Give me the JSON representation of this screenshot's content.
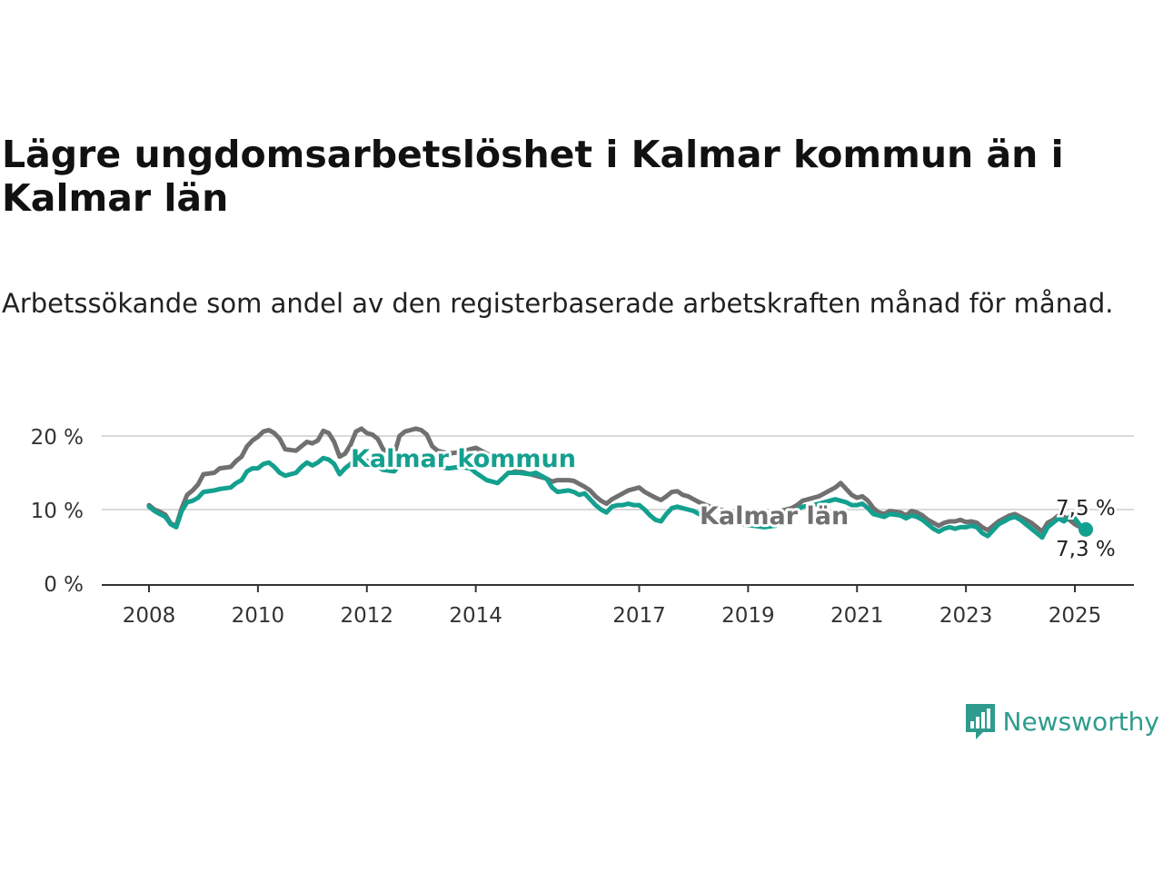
{
  "title": "Lägre ungdomsarbetslöshet i Kalmar kommun än i Kalmar län",
  "subtitle": "Arbetssökande som andel av den registerbaserade arbetskraften månad för månad.",
  "brand": {
    "name": "Newsworthy",
    "color": "#2e9b8e",
    "icon": "newsworthy-logo-icon"
  },
  "chart_data": {
    "type": "line",
    "xlabel": "",
    "ylabel": "",
    "ylim": [
      0,
      20
    ],
    "yticks": [
      {
        "value": 0,
        "label": "0 %"
      },
      {
        "value": 10,
        "label": "10 %"
      },
      {
        "value": 20,
        "label": "20 %"
      }
    ],
    "xlim": [
      2008,
      2025.6
    ],
    "xticks": [
      "2008",
      "2010",
      "2012",
      "2014",
      "2017",
      "2019",
      "2021",
      "2023",
      "2025"
    ],
    "grid": true,
    "series": [
      {
        "name": "Kalmar län",
        "color": "#707070",
        "end_label": "7,5 %",
        "points": [
          [
            2008.0,
            10.6
          ],
          [
            2008.1,
            10.0
          ],
          [
            2008.2,
            9.7
          ],
          [
            2008.3,
            9.3
          ],
          [
            2008.4,
            8.1
          ],
          [
            2008.5,
            7.8
          ],
          [
            2008.6,
            10.2
          ],
          [
            2008.7,
            12.0
          ],
          [
            2008.8,
            12.6
          ],
          [
            2008.9,
            13.4
          ],
          [
            2009.0,
            14.8
          ],
          [
            2009.2,
            15.0
          ],
          [
            2009.3,
            15.6
          ],
          [
            2009.5,
            15.8
          ],
          [
            2009.6,
            16.6
          ],
          [
            2009.7,
            17.2
          ],
          [
            2009.8,
            18.6
          ],
          [
            2009.9,
            19.4
          ],
          [
            2010.0,
            19.9
          ],
          [
            2010.1,
            20.6
          ],
          [
            2010.2,
            20.8
          ],
          [
            2010.3,
            20.4
          ],
          [
            2010.4,
            19.6
          ],
          [
            2010.5,
            18.2
          ],
          [
            2010.7,
            18.0
          ],
          [
            2010.8,
            18.6
          ],
          [
            2010.9,
            19.2
          ],
          [
            2011.0,
            19.0
          ],
          [
            2011.1,
            19.4
          ],
          [
            2011.2,
            20.7
          ],
          [
            2011.3,
            20.4
          ],
          [
            2011.4,
            19.2
          ],
          [
            2011.5,
            17.2
          ],
          [
            2011.6,
            17.6
          ],
          [
            2011.7,
            18.8
          ],
          [
            2011.8,
            20.6
          ],
          [
            2011.9,
            21.0
          ],
          [
            2012.0,
            20.4
          ],
          [
            2012.1,
            20.2
          ],
          [
            2012.2,
            19.6
          ],
          [
            2012.3,
            18.2
          ],
          [
            2012.5,
            17.4
          ],
          [
            2012.6,
            20.0
          ],
          [
            2012.7,
            20.6
          ],
          [
            2012.8,
            20.8
          ],
          [
            2012.9,
            21.0
          ],
          [
            2013.0,
            20.8
          ],
          [
            2013.1,
            20.2
          ],
          [
            2013.2,
            18.6
          ],
          [
            2013.3,
            18.0
          ],
          [
            2013.5,
            17.6
          ],
          [
            2013.7,
            17.8
          ],
          [
            2013.9,
            18.2
          ],
          [
            2014.0,
            18.4
          ],
          [
            2014.2,
            17.6
          ],
          [
            2014.4,
            16.8
          ],
          [
            2014.6,
            16.0
          ],
          [
            2014.8,
            15.2
          ],
          [
            2015.0,
            14.8
          ],
          [
            2015.1,
            14.6
          ],
          [
            2015.3,
            14.2
          ],
          [
            2015.4,
            13.8
          ],
          [
            2015.5,
            14.0
          ],
          [
            2015.7,
            14.0
          ],
          [
            2015.8,
            13.9
          ],
          [
            2015.9,
            13.5
          ],
          [
            2016.0,
            13.1
          ],
          [
            2016.1,
            12.6
          ],
          [
            2016.2,
            11.8
          ],
          [
            2016.3,
            11.2
          ],
          [
            2016.4,
            10.8
          ],
          [
            2016.5,
            11.4
          ],
          [
            2016.6,
            11.8
          ],
          [
            2016.7,
            12.2
          ],
          [
            2016.8,
            12.6
          ],
          [
            2016.9,
            12.8
          ],
          [
            2017.0,
            13.0
          ],
          [
            2017.1,
            12.4
          ],
          [
            2017.2,
            12.0
          ],
          [
            2017.3,
            11.6
          ],
          [
            2017.4,
            11.3
          ],
          [
            2017.5,
            11.8
          ],
          [
            2017.6,
            12.4
          ],
          [
            2017.7,
            12.5
          ],
          [
            2017.8,
            12.0
          ],
          [
            2017.9,
            11.8
          ],
          [
            2018.0,
            11.4
          ],
          [
            2018.1,
            11.0
          ],
          [
            2018.3,
            10.4
          ],
          [
            2018.5,
            10.0
          ],
          [
            2018.7,
            9.6
          ],
          [
            2018.9,
            9.2
          ],
          [
            2019.1,
            9.0
          ],
          [
            2019.3,
            8.8
          ],
          [
            2019.5,
            8.6
          ],
          [
            2019.6,
            9.8
          ],
          [
            2019.8,
            10.2
          ],
          [
            2019.9,
            10.6
          ],
          [
            2020.0,
            11.2
          ],
          [
            2020.2,
            11.6
          ],
          [
            2020.3,
            11.8
          ],
          [
            2020.4,
            12.2
          ],
          [
            2020.5,
            12.6
          ],
          [
            2020.6,
            13.0
          ],
          [
            2020.7,
            13.6
          ],
          [
            2020.8,
            12.8
          ],
          [
            2020.9,
            12.0
          ],
          [
            2021.0,
            11.6
          ],
          [
            2021.1,
            11.8
          ],
          [
            2021.2,
            11.2
          ],
          [
            2021.3,
            10.2
          ],
          [
            2021.4,
            9.6
          ],
          [
            2021.5,
            9.4
          ],
          [
            2021.6,
            9.8
          ],
          [
            2021.8,
            9.6
          ],
          [
            2021.9,
            9.2
          ],
          [
            2022.0,
            9.8
          ],
          [
            2022.1,
            9.6
          ],
          [
            2022.2,
            9.2
          ],
          [
            2022.3,
            8.6
          ],
          [
            2022.4,
            8.2
          ],
          [
            2022.5,
            7.8
          ],
          [
            2022.6,
            8.2
          ],
          [
            2022.7,
            8.4
          ],
          [
            2022.8,
            8.4
          ],
          [
            2022.9,
            8.6
          ],
          [
            2023.0,
            8.3
          ],
          [
            2023.1,
            8.4
          ],
          [
            2023.2,
            8.2
          ],
          [
            2023.3,
            7.6
          ],
          [
            2023.4,
            7.2
          ],
          [
            2023.5,
            7.8
          ],
          [
            2023.6,
            8.4
          ],
          [
            2023.7,
            8.8
          ],
          [
            2023.8,
            9.2
          ],
          [
            2023.9,
            9.4
          ],
          [
            2024.0,
            9.0
          ],
          [
            2024.1,
            8.6
          ],
          [
            2024.2,
            8.2
          ],
          [
            2024.3,
            7.6
          ],
          [
            2024.4,
            7.0
          ],
          [
            2024.5,
            8.2
          ],
          [
            2024.6,
            8.6
          ],
          [
            2024.7,
            9.2
          ],
          [
            2024.8,
            9.0
          ],
          [
            2024.9,
            8.6
          ],
          [
            2025.0,
            8.0
          ],
          [
            2025.1,
            7.6
          ],
          [
            2025.2,
            7.5
          ]
        ]
      },
      {
        "name": "Kalmar kommun",
        "color": "#13a08f",
        "end_label": "7,3 %",
        "points": [
          [
            2008.0,
            10.4
          ],
          [
            2008.1,
            9.8
          ],
          [
            2008.2,
            9.4
          ],
          [
            2008.3,
            9.0
          ],
          [
            2008.4,
            8.0
          ],
          [
            2008.5,
            7.6
          ],
          [
            2008.6,
            9.8
          ],
          [
            2008.7,
            11.0
          ],
          [
            2008.8,
            11.2
          ],
          [
            2008.9,
            11.6
          ],
          [
            2009.0,
            12.4
          ],
          [
            2009.2,
            12.6
          ],
          [
            2009.3,
            12.8
          ],
          [
            2009.5,
            13.0
          ],
          [
            2009.6,
            13.6
          ],
          [
            2009.7,
            14.0
          ],
          [
            2009.8,
            15.2
          ],
          [
            2009.9,
            15.6
          ],
          [
            2010.0,
            15.6
          ],
          [
            2010.1,
            16.2
          ],
          [
            2010.2,
            16.4
          ],
          [
            2010.3,
            15.8
          ],
          [
            2010.4,
            15.0
          ],
          [
            2010.5,
            14.6
          ],
          [
            2010.7,
            15.0
          ],
          [
            2010.8,
            15.8
          ],
          [
            2010.9,
            16.4
          ],
          [
            2011.0,
            16.0
          ],
          [
            2011.1,
            16.4
          ],
          [
            2011.2,
            17.0
          ],
          [
            2011.3,
            16.8
          ],
          [
            2011.4,
            16.2
          ],
          [
            2011.5,
            14.8
          ],
          [
            2011.6,
            15.6
          ],
          [
            2011.7,
            16.2
          ],
          [
            2011.8,
            17.0
          ],
          [
            2011.9,
            16.8
          ],
          [
            2012.0,
            16.6
          ],
          [
            2012.1,
            16.2
          ],
          [
            2012.2,
            15.8
          ],
          [
            2012.3,
            15.4
          ],
          [
            2012.5,
            15.2
          ],
          [
            2012.6,
            16.0
          ],
          [
            2012.7,
            16.6
          ],
          [
            2012.8,
            16.8
          ],
          [
            2012.9,
            17.0
          ],
          [
            2013.0,
            17.2
          ],
          [
            2013.1,
            16.8
          ],
          [
            2013.2,
            16.2
          ],
          [
            2013.3,
            15.8
          ],
          [
            2013.5,
            15.6
          ],
          [
            2013.7,
            15.8
          ],
          [
            2013.9,
            15.6
          ],
          [
            2014.0,
            15.0
          ],
          [
            2014.2,
            14.0
          ],
          [
            2014.4,
            13.6
          ],
          [
            2014.6,
            15.0
          ],
          [
            2014.8,
            15.0
          ],
          [
            2015.0,
            14.8
          ],
          [
            2015.1,
            15.0
          ],
          [
            2015.3,
            14.2
          ],
          [
            2015.4,
            13.0
          ],
          [
            2015.5,
            12.4
          ],
          [
            2015.7,
            12.6
          ],
          [
            2015.8,
            12.4
          ],
          [
            2015.9,
            12.0
          ],
          [
            2016.0,
            12.2
          ],
          [
            2016.1,
            11.4
          ],
          [
            2016.2,
            10.6
          ],
          [
            2016.3,
            10.0
          ],
          [
            2016.4,
            9.6
          ],
          [
            2016.5,
            10.4
          ],
          [
            2016.6,
            10.6
          ],
          [
            2016.7,
            10.6
          ],
          [
            2016.8,
            10.8
          ],
          [
            2016.9,
            10.6
          ],
          [
            2017.0,
            10.6
          ],
          [
            2017.1,
            10.0
          ],
          [
            2017.2,
            9.2
          ],
          [
            2017.3,
            8.6
          ],
          [
            2017.4,
            8.4
          ],
          [
            2017.5,
            9.4
          ],
          [
            2017.6,
            10.2
          ],
          [
            2017.7,
            10.4
          ],
          [
            2017.8,
            10.2
          ],
          [
            2017.9,
            10.0
          ],
          [
            2018.0,
            9.8
          ],
          [
            2018.1,
            9.4
          ],
          [
            2018.3,
            8.8
          ],
          [
            2018.5,
            8.4
          ],
          [
            2018.7,
            8.2
          ],
          [
            2018.9,
            8.0
          ],
          [
            2019.1,
            7.8
          ],
          [
            2019.3,
            7.6
          ],
          [
            2019.5,
            7.8
          ],
          [
            2019.6,
            8.6
          ],
          [
            2019.8,
            9.4
          ],
          [
            2019.9,
            10.0
          ],
          [
            2020.0,
            10.4
          ],
          [
            2020.2,
            10.6
          ],
          [
            2020.3,
            10.8
          ],
          [
            2020.4,
            11.0
          ],
          [
            2020.5,
            11.2
          ],
          [
            2020.6,
            11.4
          ],
          [
            2020.7,
            11.2
          ],
          [
            2020.8,
            11.0
          ],
          [
            2020.9,
            10.6
          ],
          [
            2021.0,
            10.6
          ],
          [
            2021.1,
            10.8
          ],
          [
            2021.2,
            10.2
          ],
          [
            2021.3,
            9.4
          ],
          [
            2021.4,
            9.2
          ],
          [
            2021.5,
            9.0
          ],
          [
            2021.6,
            9.4
          ],
          [
            2021.8,
            9.2
          ],
          [
            2021.9,
            8.8
          ],
          [
            2022.0,
            9.2
          ],
          [
            2022.1,
            9.0
          ],
          [
            2022.2,
            8.6
          ],
          [
            2022.3,
            8.0
          ],
          [
            2022.4,
            7.4
          ],
          [
            2022.5,
            7.0
          ],
          [
            2022.6,
            7.4
          ],
          [
            2022.7,
            7.6
          ],
          [
            2022.8,
            7.4
          ],
          [
            2022.9,
            7.6
          ],
          [
            2023.0,
            7.6
          ],
          [
            2023.1,
            7.8
          ],
          [
            2023.2,
            7.6
          ],
          [
            2023.3,
            6.8
          ],
          [
            2023.4,
            6.4
          ],
          [
            2023.5,
            7.2
          ],
          [
            2023.6,
            8.0
          ],
          [
            2023.7,
            8.4
          ],
          [
            2023.8,
            8.8
          ],
          [
            2023.9,
            9.0
          ],
          [
            2024.0,
            8.6
          ],
          [
            2024.1,
            8.0
          ],
          [
            2024.2,
            7.4
          ],
          [
            2024.3,
            6.8
          ],
          [
            2024.4,
            6.2
          ],
          [
            2024.5,
            7.6
          ],
          [
            2024.6,
            8.2
          ],
          [
            2024.7,
            8.8
          ],
          [
            2024.8,
            8.4
          ],
          [
            2024.9,
            9.0
          ],
          [
            2025.0,
            8.8
          ],
          [
            2025.1,
            7.8
          ],
          [
            2025.2,
            7.3
          ]
        ]
      }
    ]
  }
}
